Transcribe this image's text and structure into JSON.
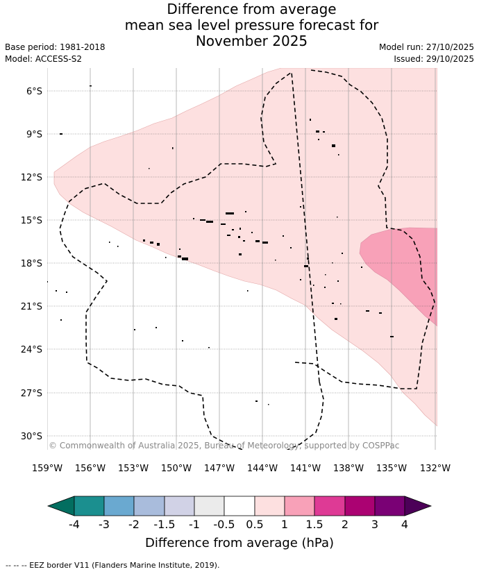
{
  "title": {
    "line1": "Difference from average",
    "line2": "mean sea level pressure forecast for",
    "line3": "November 2025"
  },
  "meta": {
    "base_period": "Base period: 1981-2018",
    "model": "Model: ACCESS-S2",
    "model_run": "Model run: 27/10/2025",
    "issued": "Issued: 29/10/2025"
  },
  "map": {
    "lat_labels": [
      "6°S",
      "9°S",
      "12°S",
      "15°S",
      "18°S",
      "21°S",
      "24°S",
      "27°S",
      "30°S"
    ],
    "lon_labels": [
      "159°W",
      "156°W",
      "153°W",
      "150°W",
      "147°W",
      "144°W",
      "141°W",
      "138°W",
      "135°W",
      "132°W"
    ],
    "credit": "© Commonwealth of Australia 2025, Bureau of Meteorology, supported by COSPPac",
    "anomaly_regions": [
      {
        "name": "0.5 to 1 hPa",
        "color": "#fde0e0"
      },
      {
        "name": "1 to 1.5 hPa",
        "color": "#f8a1b8"
      }
    ]
  },
  "legend": {
    "ticks": [
      "-4",
      "-3",
      "-2",
      "-1.5",
      "-1",
      "-0.5",
      "0.5",
      "1",
      "1.5",
      "2",
      "3",
      "4"
    ],
    "colors": [
      "#1b8f8f",
      "#6aa9d0",
      "#a9bcdc",
      "#d1d2e6",
      "#ebebeb",
      "#ffffff",
      "#fde0e0",
      "#f8a1b8",
      "#de3a95",
      "#ab0272",
      "#7a0175"
    ],
    "under_color": "#036e60",
    "over_color": "#4c0058",
    "label": "Difference from average (hPa)"
  },
  "footer": "-- -- -- EEZ border V11 (Flanders Marine Institute, 2019)."
}
